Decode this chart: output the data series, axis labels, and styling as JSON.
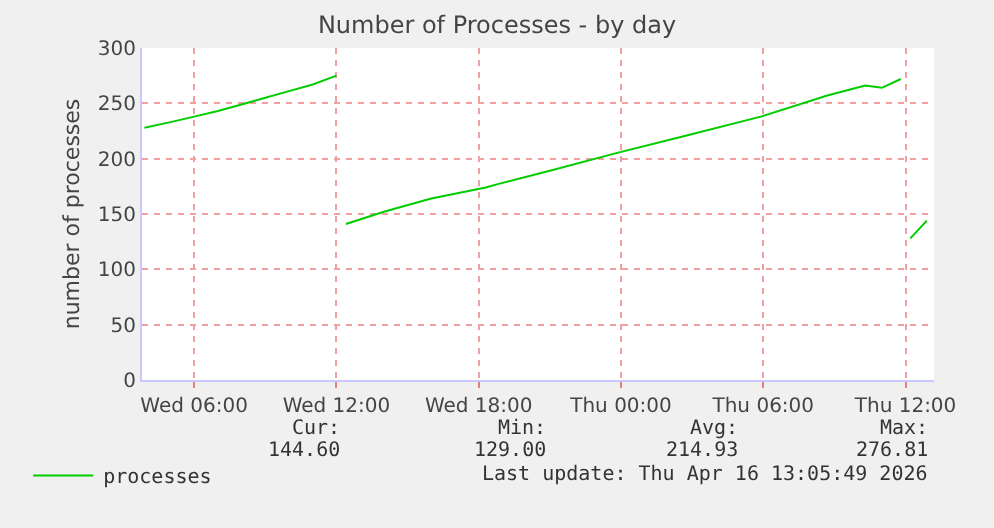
{
  "chart_data": {
    "type": "line",
    "title": "Number of Processes - by day",
    "ylabel": "number of processes",
    "x": [
      "2026-04-15T03:54",
      "2026-04-15T05:00",
      "2026-04-15T06:00",
      "2026-04-15T07:00",
      "2026-04-15T08:00",
      "2026-04-15T09:00",
      "2026-04-15T10:00",
      "2026-04-15T11:00",
      "2026-04-15T12:00",
      "2026-04-15T12:12",
      "2026-04-15T12:24",
      "2026-04-15T14:00",
      "2026-04-15T16:00",
      "2026-04-15T18:18",
      "2026-04-15T18:48",
      "2026-04-15T21:00",
      "2026-04-15T23:48",
      "2026-04-16T02:36",
      "2026-04-16T05:54",
      "2026-04-16T08:42",
      "2026-04-16T10:18",
      "2026-04-16T11:00",
      "2026-04-16T11:48",
      "2026-04-16T12:00",
      "2026-04-16T12:12",
      "2026-04-16T12:54"
    ],
    "series": [
      {
        "name": "processes",
        "color": "#00cc00",
        "values": [
          228,
          233,
          238,
          243,
          249,
          255,
          261,
          267,
          275,
          null,
          141,
          152,
          164,
          174,
          177,
          189,
          205,
          220,
          238,
          257,
          266,
          264,
          272,
          null,
          128,
          144
        ]
      }
    ],
    "xlim": [
      "2026-04-15T03:48",
      "2026-04-16T13:12"
    ],
    "xticks": [
      {
        "value": "2026-04-15T06:00",
        "label": "Wed 06:00"
      },
      {
        "value": "2026-04-15T12:00",
        "label": "Wed 12:00"
      },
      {
        "value": "2026-04-15T18:00",
        "label": "Wed 18:00"
      },
      {
        "value": "2026-04-16T00:00",
        "label": "Thu 00:00"
      },
      {
        "value": "2026-04-16T06:00",
        "label": "Thu 06:00"
      },
      {
        "value": "2026-04-16T12:00",
        "label": "Thu 12:00"
      }
    ],
    "ylim": [
      0,
      300
    ],
    "yticks": [
      0,
      50,
      100,
      150,
      200,
      250,
      300
    ],
    "grid": true,
    "legend": "bottom left",
    "marker": "none",
    "line_style": "solid",
    "annotations": [
      "Cur:",
      "Min:",
      "Avg:",
      "Max:",
      "144.60",
      "129.00",
      "214.93",
      "276.81",
      "Last update: Thu Apr 16 13:05:49 2026"
    ]
  }
}
